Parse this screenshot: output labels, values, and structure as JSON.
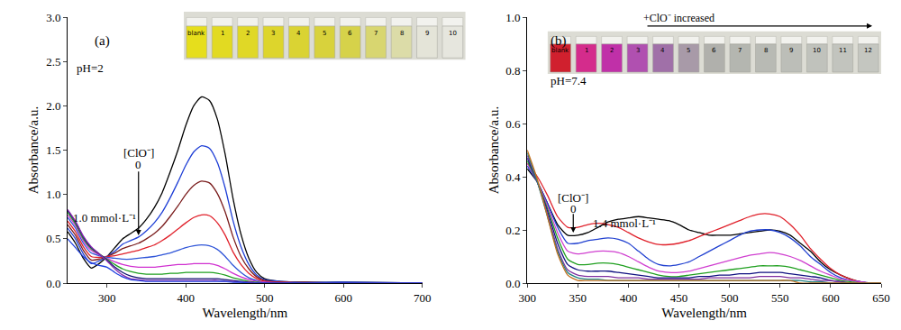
{
  "chart_data": [
    {
      "type": "line",
      "panel_label": "(a)",
      "condition": "pH=2",
      "arrow_label": "[ClO⁻]",
      "start_label": "0",
      "end_label": "1.0 mmol·L⁻¹",
      "x_label": "Wavelength/nm",
      "y_label": "Absorbance/a.u.",
      "xlim": [
        250,
        700
      ],
      "xticks": [
        300,
        400,
        500,
        600,
        700
      ],
      "ylim": [
        0,
        3.0
      ],
      "yticks": [
        {
          "value": 0,
          "label": "0.0"
        },
        {
          "value": 0.5,
          "label": "0.5"
        },
        {
          "value": 1.0,
          "label": "1.0"
        },
        {
          "value": 1.5,
          "label": "1.5"
        },
        {
          "value": 2.0,
          "label": "2.0"
        },
        {
          "value": 2.5,
          "label": "2.5"
        },
        {
          "value": 3.0,
          "label": "3.0"
        }
      ],
      "grid": false,
      "vials": {
        "labels": [
          "blank",
          "1",
          "2",
          "3",
          "4",
          "5",
          "6",
          "7",
          "8",
          "9",
          "10"
        ],
        "colors": [
          "#e6de1c",
          "#e2da22",
          "#e0d826",
          "#ddd52c",
          "#dad333",
          "#d8d23c",
          "#d6d24a",
          "#d8d670",
          "#dcdca8",
          "#e4e4d8",
          "#e6e6de"
        ]
      },
      "x": [
        250,
        260,
        270,
        280,
        290,
        300,
        310,
        320,
        330,
        340,
        350,
        360,
        370,
        380,
        390,
        400,
        410,
        420,
        430,
        440,
        450,
        460,
        470,
        480,
        490,
        500,
        520,
        550,
        600,
        700
      ],
      "series": [
        {
          "color": "#000000",
          "values": [
            0.58,
            0.45,
            0.28,
            0.17,
            0.22,
            0.3,
            0.4,
            0.5,
            0.56,
            0.62,
            0.72,
            0.85,
            1.02,
            1.25,
            1.5,
            1.78,
            2.0,
            2.1,
            2.06,
            1.85,
            1.45,
            0.95,
            0.55,
            0.28,
            0.12,
            0.05,
            0.02,
            0.01,
            0.01,
            0.0
          ]
        },
        {
          "color": "#1f3fd6",
          "values": [
            0.62,
            0.5,
            0.33,
            0.22,
            0.25,
            0.3,
            0.36,
            0.44,
            0.48,
            0.52,
            0.59,
            0.68,
            0.8,
            0.96,
            1.14,
            1.33,
            1.48,
            1.55,
            1.52,
            1.36,
            1.07,
            0.7,
            0.41,
            0.21,
            0.09,
            0.04,
            0.02,
            0.01,
            0.01,
            0.0
          ]
        },
        {
          "color": "#7a1c1c",
          "values": [
            0.66,
            0.54,
            0.37,
            0.26,
            0.27,
            0.3,
            0.34,
            0.39,
            0.42,
            0.45,
            0.5,
            0.56,
            0.64,
            0.75,
            0.87,
            1.0,
            1.1,
            1.15,
            1.13,
            1.01,
            0.8,
            0.52,
            0.3,
            0.16,
            0.07,
            0.03,
            0.01,
            0.01,
            0.0,
            0.0
          ]
        },
        {
          "color": "#e0202a",
          "values": [
            0.7,
            0.58,
            0.41,
            0.3,
            0.29,
            0.3,
            0.31,
            0.33,
            0.35,
            0.37,
            0.4,
            0.43,
            0.48,
            0.54,
            0.61,
            0.68,
            0.74,
            0.77,
            0.76,
            0.68,
            0.54,
            0.35,
            0.21,
            0.11,
            0.05,
            0.02,
            0.01,
            0.0,
            0.0,
            0.0
          ]
        },
        {
          "color": "#2f55d8",
          "values": [
            0.74,
            0.62,
            0.45,
            0.34,
            0.31,
            0.29,
            0.28,
            0.27,
            0.27,
            0.28,
            0.29,
            0.3,
            0.32,
            0.34,
            0.37,
            0.4,
            0.42,
            0.43,
            0.42,
            0.38,
            0.3,
            0.2,
            0.12,
            0.06,
            0.03,
            0.01,
            0.0,
            0.0,
            0.0,
            0.0
          ]
        },
        {
          "color": "#d030d0",
          "values": [
            0.77,
            0.65,
            0.48,
            0.37,
            0.32,
            0.28,
            0.24,
            0.21,
            0.19,
            0.18,
            0.18,
            0.18,
            0.19,
            0.2,
            0.21,
            0.21,
            0.22,
            0.22,
            0.22,
            0.2,
            0.16,
            0.11,
            0.07,
            0.04,
            0.02,
            0.01,
            0.0,
            0.0,
            0.0,
            0.0
          ]
        },
        {
          "color": "#20a020",
          "values": [
            0.8,
            0.67,
            0.5,
            0.39,
            0.33,
            0.27,
            0.21,
            0.16,
            0.13,
            0.11,
            0.1,
            0.1,
            0.1,
            0.11,
            0.11,
            0.12,
            0.12,
            0.12,
            0.12,
            0.11,
            0.09,
            0.06,
            0.04,
            0.02,
            0.01,
            0.0,
            0.0,
            0.0,
            0.0,
            0.0
          ]
        },
        {
          "color": "#101070",
          "values": [
            0.82,
            0.69,
            0.52,
            0.4,
            0.33,
            0.26,
            0.18,
            0.12,
            0.08,
            0.06,
            0.05,
            0.05,
            0.05,
            0.05,
            0.05,
            0.05,
            0.05,
            0.05,
            0.05,
            0.05,
            0.04,
            0.03,
            0.02,
            0.01,
            0.0,
            0.0,
            0.0,
            0.0,
            0.0,
            0.0
          ]
        },
        {
          "color": "#8a2bb0",
          "values": [
            0.83,
            0.7,
            0.53,
            0.41,
            0.33,
            0.25,
            0.16,
            0.09,
            0.05,
            0.04,
            0.03,
            0.03,
            0.03,
            0.03,
            0.03,
            0.03,
            0.03,
            0.03,
            0.03,
            0.03,
            0.02,
            0.02,
            0.01,
            0.01,
            0.0,
            0.0,
            0.0,
            0.0,
            0.0,
            0.0
          ]
        },
        {
          "color": "#2040e0",
          "values": [
            0.5,
            0.4,
            0.3,
            0.23,
            0.2,
            0.18,
            0.12,
            0.07,
            0.04,
            0.03,
            0.02,
            0.02,
            0.02,
            0.02,
            0.02,
            0.02,
            0.02,
            0.02,
            0.02,
            0.02,
            0.02,
            0.01,
            0.01,
            0.0,
            0.0,
            0.0,
            0.0,
            0.0,
            0.0,
            0.0
          ]
        }
      ]
    },
    {
      "type": "line",
      "panel_label": "(b)",
      "condition": "pH=7.4",
      "arrow_label": "[ClO⁻]",
      "start_label": "0",
      "end_label": "1.4 mmol·L⁻¹",
      "inset_label": "+ClO⁻ increased",
      "x_label": "Wavelength/nm",
      "y_label": "Absorbance/a.u.",
      "xlim": [
        300,
        650
      ],
      "xticks": [
        300,
        350,
        400,
        450,
        500,
        550,
        600,
        650
      ],
      "ylim": [
        0,
        1.0
      ],
      "yticks": [
        {
          "value": 0,
          "label": "0.0"
        },
        {
          "value": 0.2,
          "label": "0.2"
        },
        {
          "value": 0.4,
          "label": "0.4"
        },
        {
          "value": 0.6,
          "label": "0.6"
        },
        {
          "value": 0.8,
          "label": "0.8"
        },
        {
          "value": 1.0,
          "label": "1.0"
        }
      ],
      "grid": false,
      "vials": {
        "labels": [
          "blank",
          "1",
          "2",
          "3",
          "4",
          "5",
          "6",
          "7",
          "8",
          "9",
          "10",
          "11",
          "12"
        ],
        "colors": [
          "#d0202e",
          "#d42c8c",
          "#c030a8",
          "#b050b0",
          "#a070a8",
          "#a89aa8",
          "#b0b0ac",
          "#b4b6b0",
          "#b8bab4",
          "#bcbeb8",
          "#c0c2bc",
          "#c2c4be",
          "#c4c6c0"
        ]
      },
      "x": [
        300,
        310,
        320,
        330,
        340,
        350,
        360,
        370,
        380,
        390,
        400,
        410,
        420,
        430,
        440,
        450,
        460,
        470,
        480,
        490,
        500,
        510,
        520,
        530,
        540,
        550,
        560,
        570,
        580,
        590,
        600,
        610,
        620,
        630,
        640,
        650
      ],
      "series": [
        {
          "color": "#000000",
          "values": [
            0.43,
            0.38,
            0.3,
            0.22,
            0.18,
            0.18,
            0.19,
            0.21,
            0.23,
            0.24,
            0.245,
            0.25,
            0.245,
            0.24,
            0.235,
            0.22,
            0.2,
            0.19,
            0.18,
            0.18,
            0.18,
            0.185,
            0.19,
            0.195,
            0.2,
            0.195,
            0.18,
            0.15,
            0.12,
            0.08,
            0.05,
            0.03,
            0.015,
            0.005,
            0.0,
            0.0
          ]
        },
        {
          "color": "#e0202a",
          "values": [
            0.45,
            0.4,
            0.33,
            0.25,
            0.21,
            0.21,
            0.22,
            0.225,
            0.22,
            0.21,
            0.19,
            0.17,
            0.155,
            0.145,
            0.145,
            0.15,
            0.16,
            0.175,
            0.19,
            0.205,
            0.22,
            0.235,
            0.25,
            0.26,
            0.26,
            0.25,
            0.22,
            0.18,
            0.13,
            0.09,
            0.055,
            0.03,
            0.015,
            0.005,
            0.0,
            0.0
          ]
        },
        {
          "color": "#2040d0",
          "values": [
            0.44,
            0.38,
            0.3,
            0.21,
            0.15,
            0.15,
            0.16,
            0.165,
            0.17,
            0.165,
            0.15,
            0.12,
            0.09,
            0.07,
            0.065,
            0.07,
            0.08,
            0.1,
            0.12,
            0.14,
            0.16,
            0.18,
            0.195,
            0.2,
            0.2,
            0.19,
            0.17,
            0.14,
            0.1,
            0.07,
            0.04,
            0.02,
            0.01,
            0.005,
            0.0,
            0.0
          ]
        },
        {
          "color": "#d040d0",
          "values": [
            0.45,
            0.38,
            0.29,
            0.19,
            0.12,
            0.11,
            0.115,
            0.12,
            0.12,
            0.115,
            0.1,
            0.08,
            0.06,
            0.045,
            0.04,
            0.04,
            0.045,
            0.055,
            0.065,
            0.075,
            0.085,
            0.095,
            0.105,
            0.11,
            0.115,
            0.11,
            0.1,
            0.085,
            0.065,
            0.045,
            0.03,
            0.015,
            0.01,
            0.005,
            0.0,
            0.0
          ]
        },
        {
          "color": "#20a020",
          "values": [
            0.46,
            0.38,
            0.28,
            0.17,
            0.09,
            0.07,
            0.07,
            0.075,
            0.075,
            0.07,
            0.06,
            0.05,
            0.04,
            0.03,
            0.025,
            0.025,
            0.03,
            0.035,
            0.04,
            0.045,
            0.05,
            0.055,
            0.06,
            0.065,
            0.065,
            0.065,
            0.06,
            0.05,
            0.04,
            0.03,
            0.02,
            0.01,
            0.005,
            0.0,
            0.0,
            0.0
          ]
        },
        {
          "color": "#101080",
          "values": [
            0.47,
            0.38,
            0.27,
            0.15,
            0.07,
            0.05,
            0.045,
            0.045,
            0.045,
            0.04,
            0.035,
            0.03,
            0.025,
            0.02,
            0.02,
            0.02,
            0.02,
            0.025,
            0.025,
            0.03,
            0.03,
            0.035,
            0.035,
            0.04,
            0.04,
            0.04,
            0.035,
            0.03,
            0.025,
            0.02,
            0.01,
            0.005,
            0.0,
            0.0,
            0.0,
            0.0
          ]
        },
        {
          "color": "#8030a0",
          "values": [
            0.48,
            0.38,
            0.26,
            0.13,
            0.05,
            0.03,
            0.025,
            0.025,
            0.025,
            0.02,
            0.02,
            0.02,
            0.015,
            0.015,
            0.015,
            0.015,
            0.015,
            0.015,
            0.02,
            0.02,
            0.02,
            0.02,
            0.02,
            0.025,
            0.025,
            0.025,
            0.02,
            0.02,
            0.015,
            0.01,
            0.01,
            0.005,
            0.0,
            0.0,
            0.0,
            0.0
          ]
        },
        {
          "color": "#208080",
          "values": [
            0.49,
            0.38,
            0.25,
            0.12,
            0.04,
            0.02,
            0.015,
            0.015,
            0.01,
            0.01,
            0.01,
            0.01,
            0.01,
            0.01,
            0.01,
            0.01,
            0.01,
            0.01,
            0.01,
            0.01,
            0.01,
            0.01,
            0.01,
            0.01,
            0.01,
            0.01,
            0.01,
            0.01,
            0.005,
            0.005,
            0.0,
            0.0,
            0.0,
            0.0,
            0.0,
            0.0
          ]
        },
        {
          "color": "#c07020",
          "values": [
            0.5,
            0.39,
            0.25,
            0.11,
            0.03,
            0.01,
            0.01,
            0.01,
            0.01,
            0.01,
            0.01,
            0.01,
            0.01,
            0.01,
            0.01,
            0.01,
            0.01,
            0.01,
            0.01,
            0.01,
            0.01,
            0.01,
            0.01,
            0.01,
            0.01,
            0.01,
            0.01,
            0.0,
            0.0,
            0.0,
            0.0,
            0.0,
            0.0,
            0.0,
            0.0,
            0.0
          ]
        }
      ]
    }
  ]
}
